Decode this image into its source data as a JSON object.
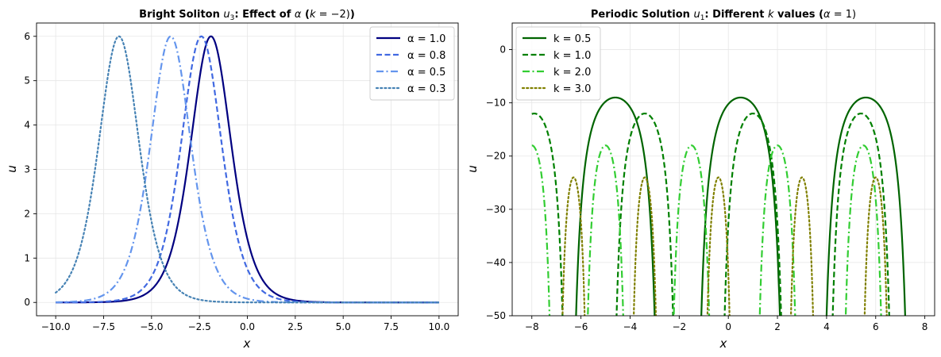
{
  "chart_data": [
    {
      "type": "line",
      "title": "Bright Soliton u₃: Effect of α (k = −2)",
      "title_parts": [
        "Bright Soliton ",
        "u",
        "3",
        ": Effect of ",
        "α",
        " (",
        "k",
        " = −2)"
      ],
      "xlabel": "x",
      "ylabel": "u",
      "xlim": [
        -11.0,
        11.0
      ],
      "ylim": [
        -0.3,
        6.3
      ],
      "xticks": [
        -10.0,
        -7.5,
        -5.0,
        -2.5,
        0.0,
        2.5,
        5.0,
        7.5,
        10.0
      ],
      "xtick_labels": [
        "−10.0",
        "−7.5",
        "−5.0",
        "−2.5",
        "0.0",
        "2.5",
        "5.0",
        "7.5",
        "10.0"
      ],
      "yticks": [
        0,
        1,
        2,
        3,
        4,
        5,
        6
      ],
      "ytick_labels": [
        "0",
        "1",
        "2",
        "3",
        "4",
        "5",
        "6"
      ],
      "grid": true,
      "legend_position": "top-right",
      "series": [
        {
          "name": "α = 1.0",
          "color": "#000080",
          "dash": "solid",
          "amplitude": 6,
          "peak_x": -1.9,
          "width_param": 0.707,
          "domain": [
            -10,
            10
          ]
        },
        {
          "name": "α = 0.8",
          "color": "#4169e1",
          "dash": "dashed",
          "amplitude": 6,
          "peak_x": -2.4,
          "width_param": 0.707,
          "domain": [
            -10,
            10
          ]
        },
        {
          "name": "α = 0.5",
          "color": "#6495ed",
          "dash": "dashdot",
          "amplitude": 6,
          "peak_x": -4.0,
          "width_param": 0.707,
          "domain": [
            -10,
            10
          ]
        },
        {
          "name": "α = 0.3",
          "color": "#4682b4",
          "dash": "dotted",
          "amplitude": 6,
          "peak_x": -6.7,
          "width_param": 0.707,
          "domain": [
            -10,
            10
          ]
        }
      ]
    },
    {
      "type": "line",
      "title": "Periodic Solution u₁: Different k values (α = 1)",
      "title_parts": [
        "Periodic Solution ",
        "u",
        "1",
        ": Different ",
        "k",
        " values (",
        "α",
        " = 1)"
      ],
      "xlabel": "x",
      "ylabel": "u",
      "xlim": [
        -8.8,
        8.4
      ],
      "ylim": [
        -50,
        5
      ],
      "xticks": [
        -8,
        -6,
        -4,
        -2,
        0,
        2,
        4,
        6,
        8
      ],
      "xtick_labels": [
        "−8",
        "−6",
        "−4",
        "−2",
        "0",
        "2",
        "4",
        "6",
        "8"
      ],
      "yticks": [
        0,
        -10,
        -20,
        -30,
        -40,
        -50
      ],
      "ytick_labels": [
        "0",
        "−10",
        "−20",
        "−30",
        "−40",
        "−50"
      ],
      "grid": true,
      "legend_position": "top-left",
      "series": [
        {
          "name": "k = 0.5",
          "color": "#006400",
          "dash": "solid",
          "peak_value": -9,
          "arch_halfwidth": 1.6,
          "period": 5.1,
          "centers": [
            -4.6,
            0.5,
            5.6
          ],
          "domain": [
            -8,
            7.5
          ]
        },
        {
          "name": "k = 1.0",
          "color": "#008000",
          "dash": "dashed",
          "peak_value": -12,
          "arch_halfwidth": 1.15,
          "period": 4.4,
          "centers": [
            -7.9,
            -3.4,
            1.0,
            5.4
          ],
          "domain": [
            -8,
            7.5
          ]
        },
        {
          "name": "k = 2.0",
          "color": "#32cd32",
          "dash": "dashdot",
          "peak_value": -18,
          "arch_halfwidth": 0.72,
          "period": 3.5,
          "centers": [
            -8.0,
            -5.0,
            -1.5,
            2.0,
            5.5
          ],
          "domain": [
            -8,
            7.5
          ]
        },
        {
          "name": "k = 3.0",
          "color": "#808000",
          "dash": "dotted",
          "peak_value": -24,
          "arch_halfwidth": 0.45,
          "period": 2.9,
          "centers": [
            -6.3,
            -3.4,
            -0.4,
            3.0,
            6.0
          ],
          "domain": [
            -8,
            7.5
          ]
        }
      ]
    }
  ]
}
